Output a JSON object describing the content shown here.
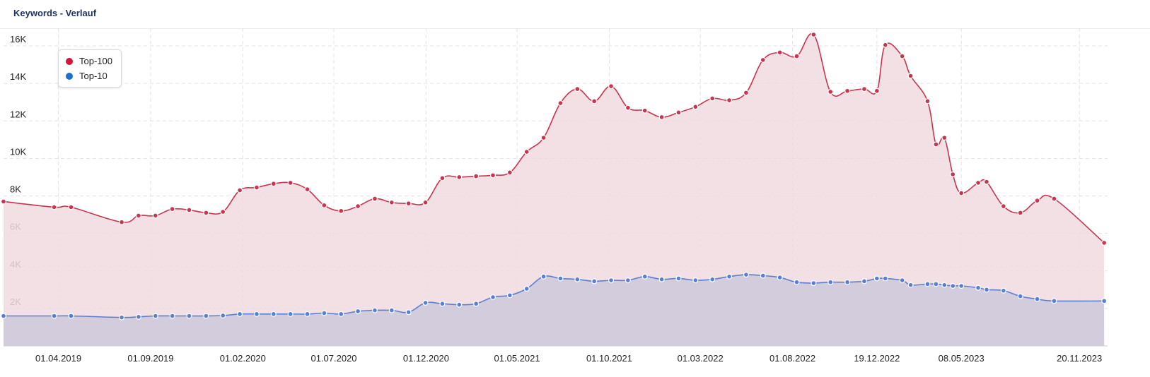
{
  "header": {
    "title": "Keywords - Verlauf"
  },
  "legend": {
    "items": [
      {
        "label": "Top-100",
        "color": "#d0143a"
      },
      {
        "label": "Top-10",
        "color": "#1b6fd1"
      }
    ]
  },
  "chart_data": {
    "type": "area",
    "xlabel": "",
    "ylabel": "",
    "ylim": [
      0,
      17000
    ],
    "y_ticks": [
      2000,
      4000,
      6000,
      8000,
      10000,
      12000,
      14000,
      16000
    ],
    "y_tick_labels": [
      "2K",
      "4K",
      "6K",
      "8K",
      "10K",
      "12K",
      "14K",
      "16K"
    ],
    "x_range": [
      "2018-12-31",
      "2024-01-01"
    ],
    "x_ticks": [
      "2019-04-01",
      "2019-09-01",
      "2020-02-01",
      "2020-07-01",
      "2020-12-01",
      "2021-05-01",
      "2021-10-01",
      "2022-03-01",
      "2022-08-01",
      "2022-12-19",
      "2023-05-08",
      "2023-11-20"
    ],
    "x_tick_labels": [
      "01.04.2019",
      "01.09.2019",
      "01.02.2020",
      "01.07.2020",
      "01.12.2020",
      "01.05.2021",
      "01.10.2021",
      "01.03.2022",
      "01.08.2022",
      "19.12.2022",
      "08.05.2023",
      "20.11.2023"
    ],
    "grid": true,
    "legend_position": "top-left",
    "series": [
      {
        "name": "Top-100",
        "color": "#c8354f",
        "fill": "#f0dbe0",
        "points": [
          [
            "2018-12-31",
            7700
          ],
          [
            "2019-03-25",
            7400
          ],
          [
            "2019-04-22",
            7400
          ],
          [
            "2019-07-15",
            6600
          ],
          [
            "2019-08-12",
            6950
          ],
          [
            "2019-09-09",
            6950
          ],
          [
            "2019-10-07",
            7300
          ],
          [
            "2019-11-04",
            7250
          ],
          [
            "2019-12-02",
            7100
          ],
          [
            "2019-12-30",
            7150
          ],
          [
            "2020-01-27",
            8300
          ],
          [
            "2020-02-24",
            8450
          ],
          [
            "2020-03-23",
            8650
          ],
          [
            "2020-04-20",
            8700
          ],
          [
            "2020-05-18",
            8350
          ],
          [
            "2020-06-15",
            7500
          ],
          [
            "2020-07-13",
            7200
          ],
          [
            "2020-08-10",
            7450
          ],
          [
            "2020-09-07",
            7850
          ],
          [
            "2020-10-05",
            7650
          ],
          [
            "2020-11-02",
            7600
          ],
          [
            "2020-11-30",
            7650
          ],
          [
            "2020-12-28",
            8950
          ],
          [
            "2021-01-25",
            9000
          ],
          [
            "2021-02-22",
            9050
          ],
          [
            "2021-03-22",
            9100
          ],
          [
            "2021-04-19",
            9250
          ],
          [
            "2021-05-17",
            10350
          ],
          [
            "2021-06-14",
            11100
          ],
          [
            "2021-07-12",
            12950
          ],
          [
            "2021-08-09",
            13700
          ],
          [
            "2021-09-06",
            13050
          ],
          [
            "2021-10-04",
            13850
          ],
          [
            "2021-11-01",
            12700
          ],
          [
            "2021-11-29",
            12550
          ],
          [
            "2021-12-27",
            12200
          ],
          [
            "2022-01-24",
            12450
          ],
          [
            "2022-02-21",
            12750
          ],
          [
            "2022-03-21",
            13200
          ],
          [
            "2022-04-18",
            13100
          ],
          [
            "2022-05-16",
            13500
          ],
          [
            "2022-06-13",
            15250
          ],
          [
            "2022-07-11",
            15650
          ],
          [
            "2022-08-08",
            15450
          ],
          [
            "2022-09-05",
            16600
          ],
          [
            "2022-10-03",
            13550
          ],
          [
            "2022-10-31",
            13600
          ],
          [
            "2022-11-28",
            13700
          ],
          [
            "2022-12-19",
            13600
          ],
          [
            "2023-01-02",
            16050
          ],
          [
            "2023-01-30",
            15450
          ],
          [
            "2023-02-13",
            14400
          ],
          [
            "2023-03-13",
            13050
          ],
          [
            "2023-03-27",
            10750
          ],
          [
            "2023-04-10",
            11100
          ],
          [
            "2023-04-24",
            9150
          ],
          [
            "2023-05-08",
            8150
          ],
          [
            "2023-06-05",
            8700
          ],
          [
            "2023-06-19",
            8750
          ],
          [
            "2023-07-17",
            7450
          ],
          [
            "2023-08-14",
            7100
          ],
          [
            "2023-09-11",
            7750
          ],
          [
            "2023-10-09",
            7850
          ],
          [
            "2023-12-31",
            5500
          ]
        ]
      },
      {
        "name": "Top-10",
        "color": "#5a7fd1",
        "fill": "#ccc8dc",
        "points": [
          [
            "2018-12-31",
            1600
          ],
          [
            "2019-03-25",
            1600
          ],
          [
            "2019-04-22",
            1600
          ],
          [
            "2019-07-15",
            1520
          ],
          [
            "2019-08-12",
            1550
          ],
          [
            "2019-09-09",
            1600
          ],
          [
            "2019-10-07",
            1600
          ],
          [
            "2019-11-04",
            1600
          ],
          [
            "2019-12-02",
            1600
          ],
          [
            "2019-12-30",
            1620
          ],
          [
            "2020-01-27",
            1700
          ],
          [
            "2020-02-24",
            1700
          ],
          [
            "2020-03-23",
            1700
          ],
          [
            "2020-04-20",
            1700
          ],
          [
            "2020-05-18",
            1700
          ],
          [
            "2020-06-15",
            1750
          ],
          [
            "2020-07-13",
            1700
          ],
          [
            "2020-08-10",
            1850
          ],
          [
            "2020-09-07",
            1900
          ],
          [
            "2020-10-05",
            1900
          ],
          [
            "2020-11-02",
            1800
          ],
          [
            "2020-11-30",
            2300
          ],
          [
            "2020-12-28",
            2250
          ],
          [
            "2021-01-25",
            2200
          ],
          [
            "2021-02-22",
            2250
          ],
          [
            "2021-03-22",
            2600
          ],
          [
            "2021-04-19",
            2700
          ],
          [
            "2021-05-17",
            3050
          ],
          [
            "2021-06-14",
            3700
          ],
          [
            "2021-07-12",
            3600
          ],
          [
            "2021-08-09",
            3550
          ],
          [
            "2021-09-06",
            3450
          ],
          [
            "2021-10-04",
            3500
          ],
          [
            "2021-11-01",
            3500
          ],
          [
            "2021-11-29",
            3700
          ],
          [
            "2021-12-27",
            3550
          ],
          [
            "2022-01-24",
            3600
          ],
          [
            "2022-02-21",
            3500
          ],
          [
            "2022-03-21",
            3550
          ],
          [
            "2022-04-18",
            3700
          ],
          [
            "2022-05-16",
            3800
          ],
          [
            "2022-06-13",
            3750
          ],
          [
            "2022-07-11",
            3650
          ],
          [
            "2022-08-08",
            3400
          ],
          [
            "2022-09-05",
            3350
          ],
          [
            "2022-10-03",
            3400
          ],
          [
            "2022-10-31",
            3400
          ],
          [
            "2022-11-28",
            3450
          ],
          [
            "2022-12-19",
            3600
          ],
          [
            "2023-01-02",
            3600
          ],
          [
            "2023-01-30",
            3500
          ],
          [
            "2023-02-13",
            3250
          ],
          [
            "2023-03-13",
            3300
          ],
          [
            "2023-03-27",
            3300
          ],
          [
            "2023-04-10",
            3250
          ],
          [
            "2023-04-24",
            3200
          ],
          [
            "2023-05-08",
            3200
          ],
          [
            "2023-06-05",
            3100
          ],
          [
            "2023-06-19",
            3000
          ],
          [
            "2023-07-17",
            2950
          ],
          [
            "2023-08-14",
            2650
          ],
          [
            "2023-09-11",
            2500
          ],
          [
            "2023-10-09",
            2400
          ],
          [
            "2023-12-31",
            2400
          ]
        ]
      }
    ]
  }
}
